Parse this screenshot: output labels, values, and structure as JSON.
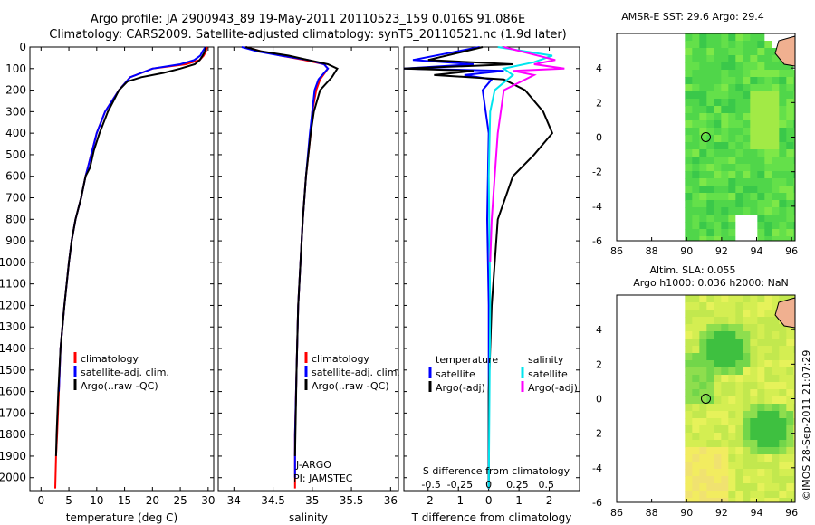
{
  "title": {
    "line1": "Argo profile: JA 2900943_89 19-May-2011 20110523_159 0.016S 91.086E",
    "line2": "Climatology: CARS2009. Satellite-adjusted climatology: synTS_20110521.nc (1.9d later)"
  },
  "colors": {
    "climatology": "#ff0000",
    "satellite": "#0000ff",
    "argo": "#000000",
    "sal_sat": "#00e5ee",
    "sal_argo": "#ff00ff"
  },
  "chart_data": [
    {
      "type": "line",
      "name": "temperature-profile",
      "xlabel": "temperature (deg C)",
      "xlim": [
        -2,
        31
      ],
      "ylim": [
        2060,
        0
      ],
      "xticks": [
        0,
        5,
        10,
        15,
        20,
        25,
        30
      ],
      "yticks": [
        0,
        100,
        200,
        300,
        400,
        500,
        600,
        700,
        800,
        900,
        1000,
        1100,
        1200,
        1300,
        1400,
        1500,
        1600,
        1700,
        1800,
        1900,
        2000
      ],
      "legend": [
        "climatology",
        "satellite-adj. clim.",
        "Argo(..raw -QC)"
      ],
      "series": [
        {
          "name": "climatology",
          "color": "#ff0000",
          "x": [
            29.8,
            29.6,
            29.2,
            28.5,
            26,
            20,
            16,
            14,
            12.5,
            11.5,
            10,
            9,
            8,
            7.2,
            6.2,
            5.5,
            5,
            4.6,
            4.2,
            3.5,
            3.2,
            2.9,
            2.7,
            2.6,
            2.55
          ],
          "y": [
            0,
            20,
            40,
            60,
            80,
            100,
            140,
            200,
            260,
            300,
            400,
            500,
            600,
            700,
            800,
            900,
            1000,
            1100,
            1200,
            1400,
            1600,
            1800,
            1900,
            2000,
            2050
          ]
        },
        {
          "name": "satellite",
          "color": "#0000ff",
          "x": [
            29.5,
            29,
            28.6,
            27.5,
            25,
            20,
            16,
            14,
            12.5,
            11.5,
            10,
            9,
            8,
            7.2,
            6.2,
            5.5,
            5,
            4.6,
            4.2,
            3.5,
            3.2
          ],
          "y": [
            0,
            20,
            40,
            60,
            80,
            100,
            140,
            200,
            260,
            300,
            400,
            500,
            600,
            700,
            800,
            900,
            1000,
            1100,
            1200,
            1400,
            1600
          ]
        },
        {
          "name": "Argo(..raw -QC)",
          "color": "#000000",
          "x": [
            29.6,
            29.4,
            29,
            28.5,
            27.6,
            25,
            22,
            18,
            15.5,
            14,
            13,
            12,
            10.5,
            9.5,
            8.8,
            8,
            7.2,
            6.2,
            5.5,
            5,
            4.6,
            4.2,
            3.5,
            3.1,
            2.8,
            2.7
          ],
          "y": [
            0,
            20,
            40,
            60,
            80,
            100,
            120,
            140,
            160,
            200,
            250,
            300,
            400,
            480,
            560,
            600,
            700,
            800,
            900,
            1000,
            1100,
            1200,
            1400,
            1600,
            1800,
            1900
          ]
        }
      ]
    },
    {
      "type": "line",
      "name": "salinity-profile",
      "xlabel": "salinity",
      "xlim": [
        33.8,
        36.1
      ],
      "ylim": [
        2060,
        0
      ],
      "xticks": [
        34,
        34.5,
        35,
        35.5,
        36
      ],
      "legend": [
        "climatology",
        "satellite-adj. clim.",
        "Argo(..raw -QC)"
      ],
      "annotations": [
        "J-ARGO",
        "PI: JAMSTEC"
      ],
      "series": [
        {
          "name": "climatology",
          "color": "#ff0000",
          "x": [
            34.15,
            34.35,
            34.6,
            34.9,
            35.15,
            35.2,
            35.1,
            35.05,
            35.0,
            34.98,
            34.92,
            34.88,
            34.85,
            34.82,
            34.8,
            34.78,
            34.78
          ],
          "y": [
            0,
            20,
            40,
            60,
            80,
            100,
            150,
            200,
            300,
            400,
            600,
            800,
            1000,
            1200,
            1500,
            1800,
            2050
          ]
        },
        {
          "name": "satellite",
          "color": "#0000ff",
          "x": [
            34.1,
            34.3,
            34.6,
            34.95,
            35.15,
            35.2,
            35.08,
            35.03,
            35.0,
            34.97,
            34.92,
            34.88,
            34.85,
            34.82,
            34.8,
            34.78,
            34.78
          ],
          "y": [
            0,
            20,
            40,
            60,
            80,
            100,
            150,
            200,
            300,
            400,
            600,
            800,
            1000,
            1200,
            1500,
            1800,
            2000
          ]
        },
        {
          "name": "Argo(..raw -QC)",
          "color": "#000000",
          "x": [
            34.15,
            34.35,
            34.7,
            34.95,
            35.2,
            35.32,
            35.25,
            35.1,
            35.02,
            34.98,
            34.95,
            34.92,
            34.88,
            34.85,
            34.82,
            34.8,
            34.78
          ],
          "y": [
            0,
            20,
            40,
            60,
            80,
            100,
            140,
            200,
            300,
            400,
            500,
            600,
            800,
            1000,
            1200,
            1500,
            1900
          ]
        }
      ]
    },
    {
      "type": "line",
      "name": "difference-profile",
      "xlabel": "T difference from climatology",
      "xlabel_top": "S difference from climatology",
      "xlim": [
        -2.8,
        3.0
      ],
      "ylim": [
        2060,
        0
      ],
      "xticks": [
        -2,
        -1,
        0,
        1,
        2
      ],
      "xticks_s": [
        "-0.5",
        "-0.25",
        "0",
        "0.25",
        "0.5"
      ],
      "legend": {
        "temperature": [
          "satellite",
          "Argo(-adj)"
        ],
        "salinity": [
          "satellite",
          "Argo(-adj)"
        ]
      },
      "legend_headers": [
        "temperature",
        "salinity"
      ],
      "series": [
        {
          "name": "T satellite",
          "color": "#0000ff",
          "x": [
            -0.3,
            -2.5,
            -0.5,
            -2.8,
            0.5,
            -0.8,
            0.1,
            -0.2,
            0,
            -0.05,
            0,
            0,
            0
          ],
          "y": [
            0,
            60,
            80,
            100,
            110,
            130,
            150,
            200,
            400,
            800,
            1200,
            1600,
            2050
          ]
        },
        {
          "name": "T Argo(-adj)",
          "color": "#000000",
          "x": [
            -0.2,
            -2,
            0.8,
            -2.8,
            -0.5,
            -1.8,
            0.5,
            1.2,
            1.8,
            2.1,
            1.5,
            0.8,
            0.3,
            0.1,
            0,
            0
          ],
          "y": [
            0,
            60,
            80,
            100,
            110,
            130,
            150,
            200,
            300,
            400,
            500,
            600,
            800,
            1200,
            1600,
            2050
          ]
        },
        {
          "name": "S satellite",
          "color": "#00e5ee",
          "x": [
            0.3,
            2.1,
            1.5,
            0.5,
            0.8,
            0.2,
            0.05,
            0,
            0.05,
            0
          ],
          "y": [
            0,
            40,
            70,
            100,
            130,
            200,
            300,
            600,
            1200,
            2050
          ]
        },
        {
          "name": "S Argo(-adj)",
          "color": "#ff00ff",
          "x": [
            0.5,
            2.2,
            1.5,
            2.5,
            0.8,
            1.5,
            0.5,
            0.3,
            0.2,
            0.1,
            0.05
          ],
          "y": [
            0,
            60,
            80,
            100,
            110,
            130,
            200,
            400,
            600,
            800,
            1000
          ]
        }
      ]
    },
    {
      "type": "heatmap",
      "name": "sst-map",
      "title": "AMSR-E SST: 29.6  Argo: 29.4",
      "xlim": [
        86,
        96.2
      ],
      "ylim": [
        -6,
        6
      ],
      "xticks": [
        86,
        88,
        90,
        92,
        94,
        96
      ],
      "yticks": [
        4,
        2,
        0,
        -2,
        -4,
        -6
      ],
      "marker": [
        91.1,
        0.0
      ]
    },
    {
      "type": "heatmap",
      "name": "sla-map",
      "title": "Altim. SLA: 0.055",
      "subtitle": "Argo h1000: 0.036 h2000: NaN",
      "xlim": [
        86,
        96.2
      ],
      "ylim": [
        -6,
        6
      ],
      "xticks": [
        86,
        88,
        90,
        92,
        94,
        96
      ],
      "yticks": [
        4,
        2,
        0,
        -2,
        -4,
        -6
      ],
      "marker": [
        91.1,
        0.0
      ]
    }
  ],
  "footer": "©IMOS 28-Sep-2011 21:07:29"
}
